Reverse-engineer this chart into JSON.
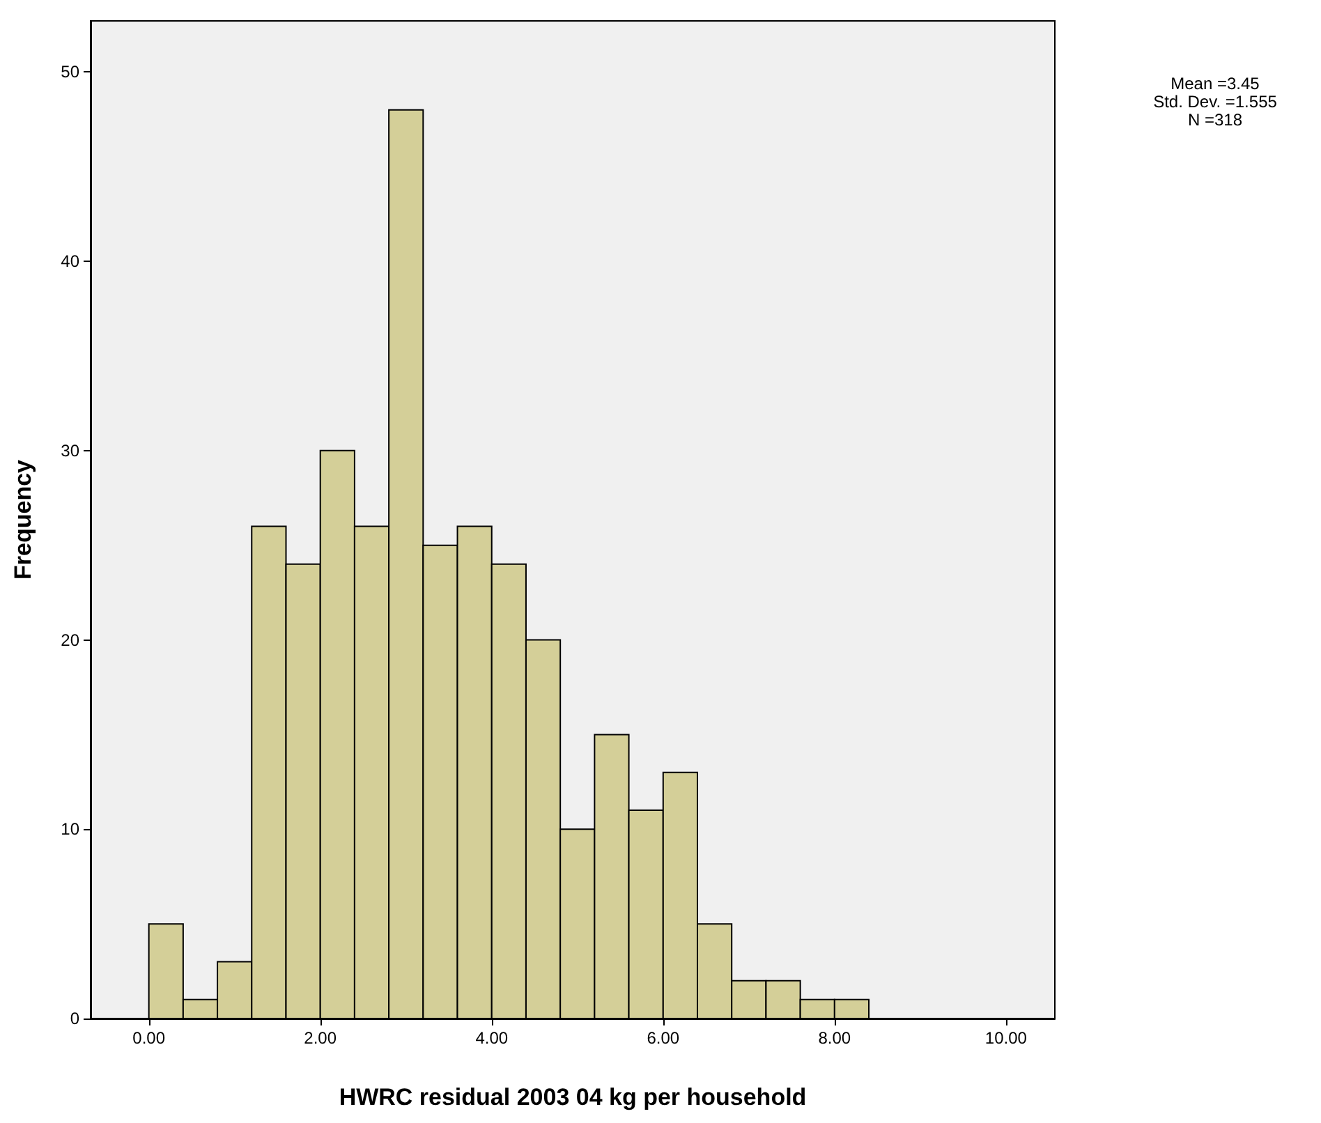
{
  "chart_data": {
    "type": "histogram",
    "xlabel": "HWRC residual 2003 04 kg per household",
    "ylabel": "Frequency",
    "bins": [
      0,
      0.4,
      0.8,
      1.2,
      1.6,
      2.0,
      2.4,
      2.8,
      3.2,
      3.6,
      4.0,
      4.4,
      4.8,
      5.2,
      5.6,
      6.0,
      6.4,
      6.8,
      7.2,
      7.6,
      8.0,
      8.4
    ],
    "values": [
      5,
      1,
      3,
      26,
      24,
      30,
      26,
      48,
      25,
      26,
      24,
      20,
      10,
      15,
      11,
      13,
      5,
      2,
      2,
      1,
      1
    ],
    "color": "#d4cf98",
    "xlim": [
      -0.68,
      10.57
    ],
    "ylim": [
      0,
      52.7
    ],
    "xticks": [
      {
        "value": 0,
        "label": "0.00"
      },
      {
        "value": 2,
        "label": "2.00"
      },
      {
        "value": 4,
        "label": "4.00"
      },
      {
        "value": 6,
        "label": "6.00"
      },
      {
        "value": 8,
        "label": "8.00"
      },
      {
        "value": 10,
        "label": "10.00"
      }
    ],
    "yticks": [
      0,
      10,
      20,
      30,
      40,
      50
    ],
    "annotations": [
      "Mean =3.45",
      "Std. Dev. =1.555",
      "N =318"
    ]
  }
}
